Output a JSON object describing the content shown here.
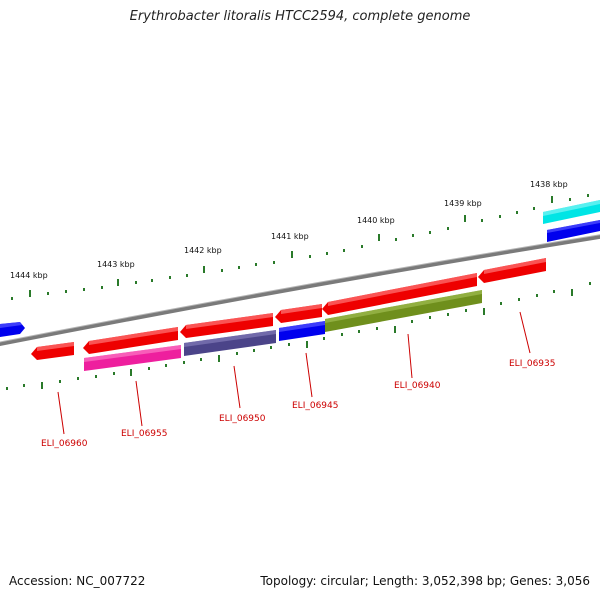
{
  "title": "Erythrobacter litoralis HTCC2594, complete genome",
  "footer": {
    "accession": "Accession: NC_007722",
    "summary": "Topology: circular; Length: 3,052,398 bp; Genes: 3,056"
  },
  "colors": {
    "backbone": "#777777",
    "tick": "#2a7a2a",
    "red_gene": "#ee0000",
    "blue_gene": "#0000ee",
    "cyan_gene": "#00e5e5",
    "pink_gene": "#ee1f9e",
    "slate_gene": "#4b4489",
    "olive_gene": "#6f8f1c",
    "label": "#cc0000"
  },
  "scale_labels": [
    "1444 kbp",
    "1443 kbp",
    "1442 kbp",
    "1441 kbp",
    "1440 kbp",
    "1439 kbp",
    "1438 kbp"
  ],
  "gene_labels": [
    "ELI_06960",
    "ELI_06955",
    "ELI_06950",
    "ELI_06945",
    "ELI_06940",
    "ELI_06935"
  ]
}
